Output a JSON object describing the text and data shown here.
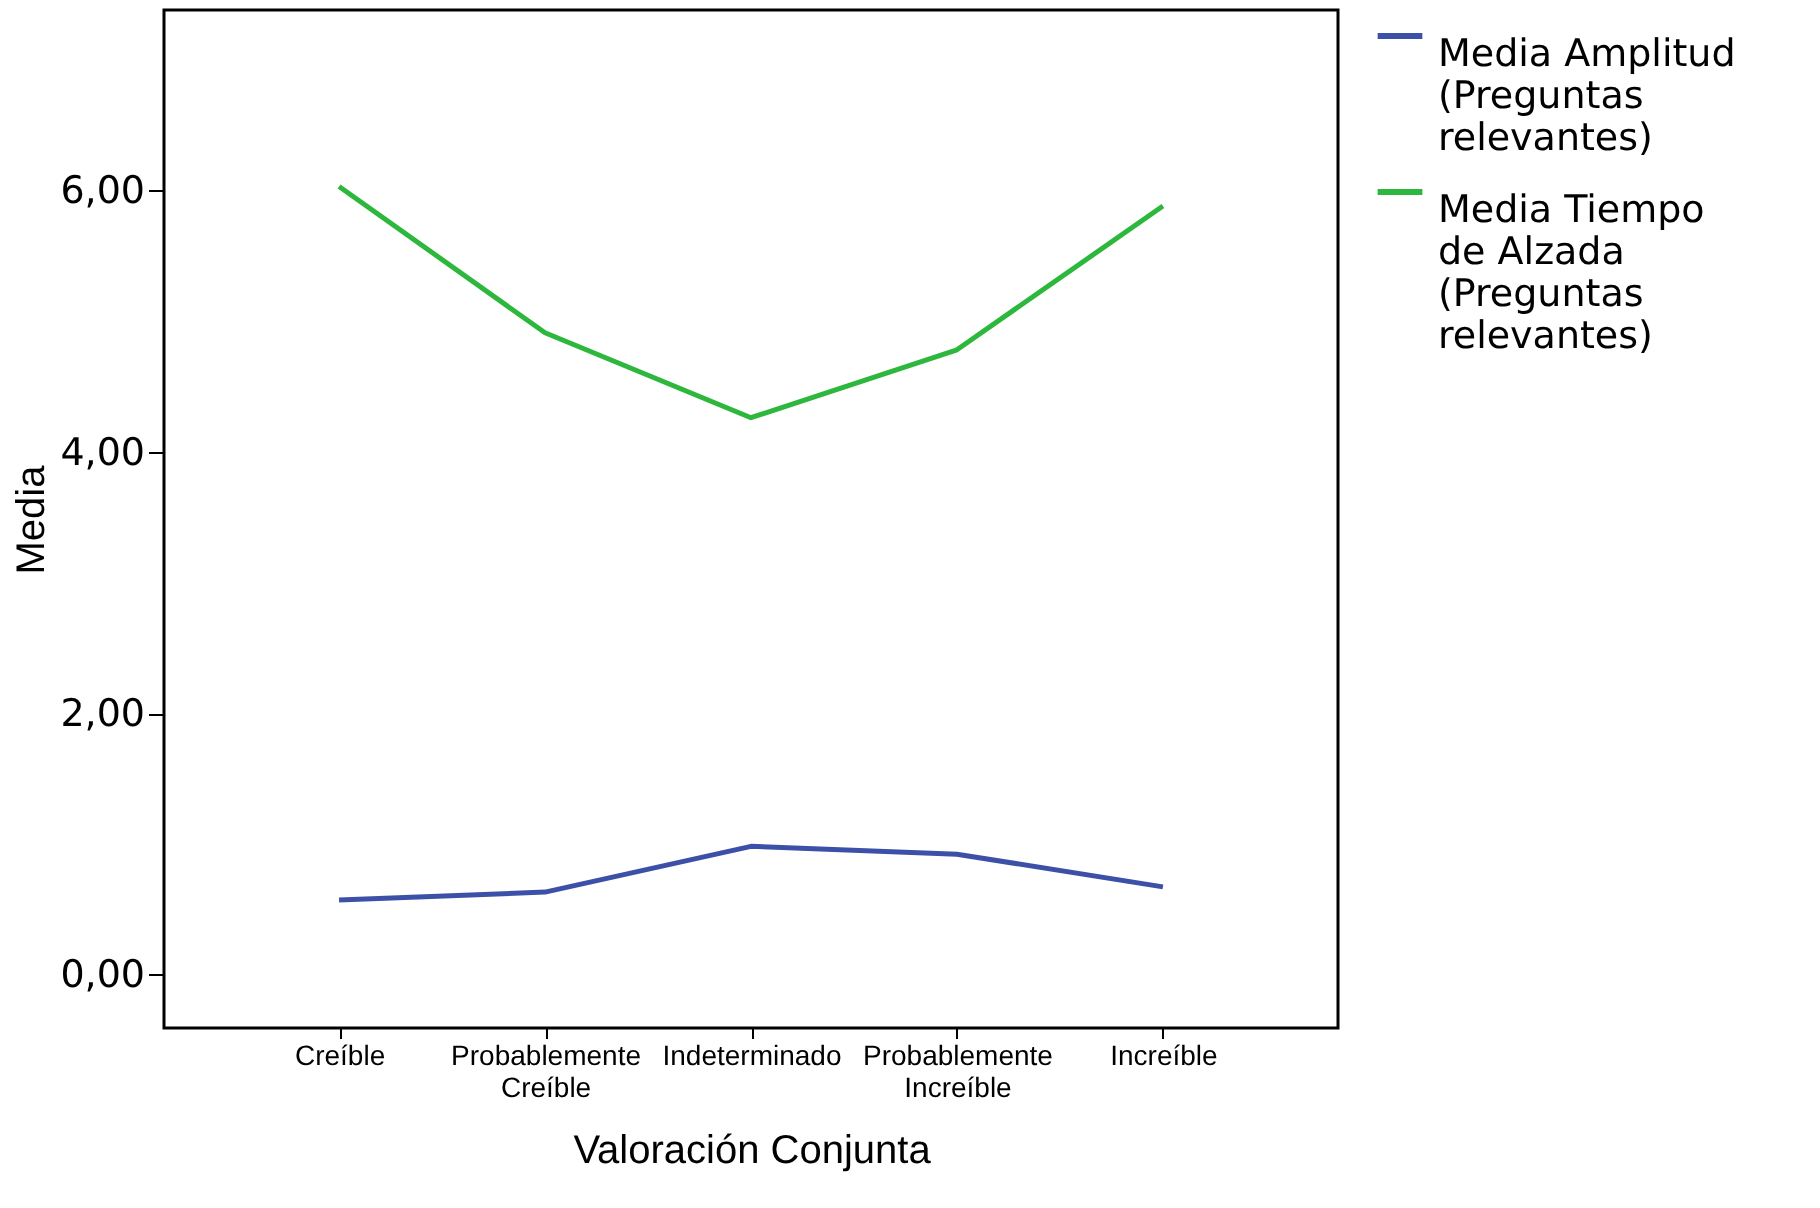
{
  "chart_data": {
    "type": "line",
    "xlabel": "Valoración Conjunta",
    "ylabel": "Media",
    "categories": [
      "Creíble",
      "Probablemente Creíble",
      "Indeterminado",
      "Probablemente Increíble",
      "Increíble"
    ],
    "series": [
      {
        "name": "Media Amplitud (Preguntas relevantes)",
        "color": "#3c50a8",
        "values": [
          0.57,
          0.63,
          0.98,
          0.92,
          0.67
        ]
      },
      {
        "name": "Media Tiempo de Alzada (Preguntas relevantes)",
        "color": "#2db83d",
        "values": [
          6.03,
          4.91,
          4.26,
          4.78,
          5.88
        ]
      }
    ],
    "ylim": [
      -0.41,
      7.38
    ],
    "yticks": [
      {
        "value": 0,
        "label": "0,00"
      },
      {
        "value": 2,
        "label": "2,00"
      },
      {
        "value": 4,
        "label": "4,00"
      },
      {
        "value": 6,
        "label": "6,00"
      }
    ],
    "grid": false,
    "legend": "top right",
    "marker": "none",
    "line_style": "solid"
  }
}
